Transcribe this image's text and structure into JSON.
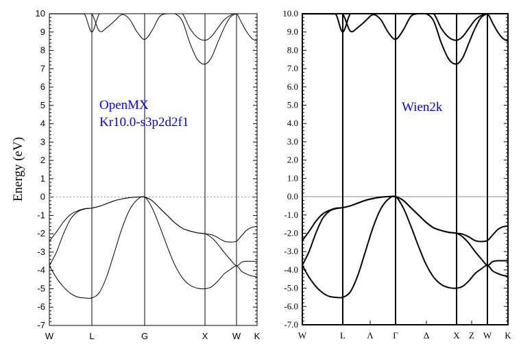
{
  "chart_data": [
    {
      "type": "line",
      "panel": "left",
      "ylabel": "Energy (eV)",
      "ylim": [
        -7,
        10
      ],
      "yticks": [
        "10",
        "9",
        "8",
        "7",
        "6",
        "5",
        "4",
        "3",
        "2",
        "1",
        "0",
        "-1",
        "-2",
        "-3",
        "-4",
        "-5",
        "-6",
        "-7"
      ],
      "kpoint_labels": [
        "W",
        "L",
        "G",
        "X",
        "W",
        "K"
      ],
      "annotation": [
        "OpenMX",
        "Kr10.0-s3p2d2f1"
      ],
      "annotation_color": "#0000ff",
      "fermi_line": "dotted",
      "segments": [
        {
          "from": "W",
          "to": "L",
          "points": 7,
          "bands": [
            [
              -3.75,
              -3.0,
              -2.0,
              -1.2,
              -0.8,
              -0.65,
              -0.6
            ],
            [
              -2.4,
              -1.9,
              -1.35,
              -0.95,
              -0.75,
              -0.63,
              -0.6
            ],
            [
              -3.75,
              -4.4,
              -4.9,
              -5.25,
              -5.45,
              -5.5,
              -5.5
            ],
            [
              9.99,
              9.99,
              9.99,
              9.99,
              9.99,
              9.99,
              9.99
            ],
            [
              10.0,
              10.0,
              10.0,
              10.0,
              10.0,
              9.95,
              9.0
            ]
          ]
        },
        {
          "from": "L",
          "to": "G",
          "points": 8,
          "bands": [
            [
              -0.6,
              -0.5,
              -0.35,
              -0.2,
              -0.1,
              -0.03,
              0.0,
              0.0
            ],
            [
              -0.6,
              -0.5,
              -0.35,
              -0.2,
              -0.1,
              -0.03,
              0.0,
              0.0
            ],
            [
              -5.5,
              -5.2,
              -4.3,
              -3.0,
              -1.7,
              -0.7,
              -0.15,
              0.0
            ],
            [
              9.0,
              9.05,
              9.25,
              9.6,
              9.95,
              9.7,
              9.0,
              8.6
            ],
            [
              10.0,
              10.0,
              10.0,
              10.0,
              10.0,
              10.0,
              10.0,
              10.0
            ]
          ]
        },
        {
          "from": "G",
          "to": "X",
          "points": 9,
          "bands": [
            [
              0.0,
              -0.2,
              -0.6,
              -1.0,
              -1.4,
              -1.7,
              -1.85,
              -1.95,
              -2.0
            ],
            [
              0.0,
              -0.2,
              -0.6,
              -1.0,
              -1.4,
              -1.7,
              -1.85,
              -1.95,
              -2.0
            ],
            [
              0.0,
              -0.6,
              -1.6,
              -2.7,
              -3.7,
              -4.4,
              -4.8,
              -4.97,
              -5.0
            ],
            [
              8.6,
              9.1,
              9.85,
              10.0,
              10.0,
              10.0,
              9.2,
              8.7,
              8.55
            ],
            [
              10.0,
              10.0,
              10.0,
              10.0,
              10.0,
              9.6,
              8.4,
              7.5,
              7.25
            ]
          ]
        },
        {
          "from": "X",
          "to": "W",
          "points": 6,
          "bands": [
            [
              -2.0,
              -2.05,
              -2.2,
              -2.4,
              -2.45,
              -2.4
            ],
            [
              -2.0,
              -2.2,
              -2.55,
              -3.0,
              -3.4,
              -3.75
            ],
            [
              -5.0,
              -4.9,
              -4.6,
              -4.2,
              -3.95,
              -3.75
            ],
            [
              8.55,
              8.75,
              9.2,
              9.65,
              9.9,
              10.0
            ],
            [
              7.25,
              7.6,
              8.4,
              9.2,
              9.8,
              10.0
            ]
          ]
        },
        {
          "from": "W",
          "to": "K",
          "points": 5,
          "bands": [
            [
              -2.4,
              -2.1,
              -1.8,
              -1.65,
              -1.6
            ],
            [
              -3.75,
              -3.55,
              -3.5,
              -3.5,
              -3.5
            ],
            [
              -3.75,
              -4.05,
              -4.2,
              -4.3,
              -4.35
            ],
            [
              10.0,
              9.5,
              9.0,
              8.65,
              8.5
            ],
            [
              10.0,
              10.0,
              10.0,
              10.0,
              10.0
            ]
          ]
        }
      ]
    },
    {
      "type": "line",
      "panel": "right",
      "ylim": [
        -7,
        10
      ],
      "yticks": [
        "10.0",
        "9.0",
        "8.0",
        "7.0",
        "6.0",
        "5.0",
        "4.0",
        "3.0",
        "2.0",
        "1.0",
        "0.0",
        "-1.0",
        "-2.0",
        "-3.0",
        "-4.0",
        "-5.0",
        "-6.0",
        "-7.0"
      ],
      "kpoint_labels": [
        "W",
        "L",
        "Λ",
        "Γ",
        "Δ",
        "X",
        "Z",
        "W",
        "K"
      ],
      "annotation": [
        "Wien2k"
      ],
      "annotation_color": "#0000ff",
      "fermi_line": "solid",
      "segments": [
        {
          "from": "W",
          "to": "L",
          "points": 7,
          "bands": [
            [
              -3.75,
              -3.0,
              -2.0,
              -1.2,
              -0.8,
              -0.65,
              -0.6
            ],
            [
              -2.4,
              -1.9,
              -1.35,
              -0.95,
              -0.75,
              -0.63,
              -0.6
            ],
            [
              -3.75,
              -4.4,
              -4.9,
              -5.25,
              -5.45,
              -5.5,
              -5.5
            ],
            [
              9.99,
              9.99,
              9.99,
              9.99,
              9.99,
              9.99,
              9.99
            ],
            [
              10.0,
              10.0,
              10.0,
              10.0,
              10.0,
              9.95,
              9.0
            ]
          ]
        },
        {
          "from": "L",
          "to": "Γ",
          "points": 8,
          "bands": [
            [
              -0.6,
              -0.5,
              -0.35,
              -0.2,
              -0.1,
              -0.03,
              0.0,
              0.0
            ],
            [
              -0.6,
              -0.5,
              -0.35,
              -0.2,
              -0.1,
              -0.03,
              0.0,
              0.0
            ],
            [
              -5.5,
              -5.2,
              -4.3,
              -3.0,
              -1.7,
              -0.7,
              -0.15,
              0.0
            ],
            [
              9.0,
              9.05,
              9.25,
              9.6,
              9.95,
              9.7,
              9.0,
              8.6
            ],
            [
              10.0,
              10.0,
              10.0,
              10.0,
              10.0,
              10.0,
              10.0,
              10.0
            ]
          ]
        },
        {
          "from": "Γ",
          "to": "X",
          "points": 9,
          "bands": [
            [
              0.0,
              -0.2,
              -0.6,
              -1.0,
              -1.4,
              -1.7,
              -1.85,
              -1.95,
              -2.0
            ],
            [
              0.0,
              -0.2,
              -0.6,
              -1.0,
              -1.4,
              -1.7,
              -1.85,
              -1.95,
              -2.0
            ],
            [
              0.0,
              -0.6,
              -1.6,
              -2.7,
              -3.7,
              -4.4,
              -4.8,
              -4.97,
              -5.0
            ],
            [
              8.6,
              9.1,
              9.85,
              10.0,
              10.0,
              10.0,
              9.2,
              8.7,
              8.55
            ],
            [
              10.0,
              10.0,
              10.0,
              10.0,
              10.0,
              9.6,
              8.4,
              7.5,
              7.25
            ]
          ]
        },
        {
          "from": "X",
          "to": "W",
          "points": 6,
          "bands": [
            [
              -2.0,
              -2.05,
              -2.2,
              -2.4,
              -2.45,
              -2.4
            ],
            [
              -2.0,
              -2.2,
              -2.55,
              -3.0,
              -3.4,
              -3.75
            ],
            [
              -5.0,
              -4.9,
              -4.6,
              -4.2,
              -3.95,
              -3.75
            ],
            [
              8.55,
              8.75,
              9.2,
              9.65,
              9.9,
              10.0
            ],
            [
              7.25,
              7.6,
              8.4,
              9.2,
              9.8,
              10.0
            ]
          ]
        },
        {
          "from": "W",
          "to": "K",
          "points": 5,
          "bands": [
            [
              -2.4,
              -2.1,
              -1.8,
              -1.65,
              -1.6
            ],
            [
              -3.75,
              -3.55,
              -3.5,
              -3.5,
              -3.5
            ],
            [
              -3.75,
              -4.05,
              -4.2,
              -4.3,
              -4.35
            ],
            [
              10.0,
              9.5,
              9.0,
              8.65,
              8.5
            ],
            [
              10.0,
              10.0,
              10.0,
              10.0,
              10.0
            ]
          ]
        }
      ]
    }
  ]
}
